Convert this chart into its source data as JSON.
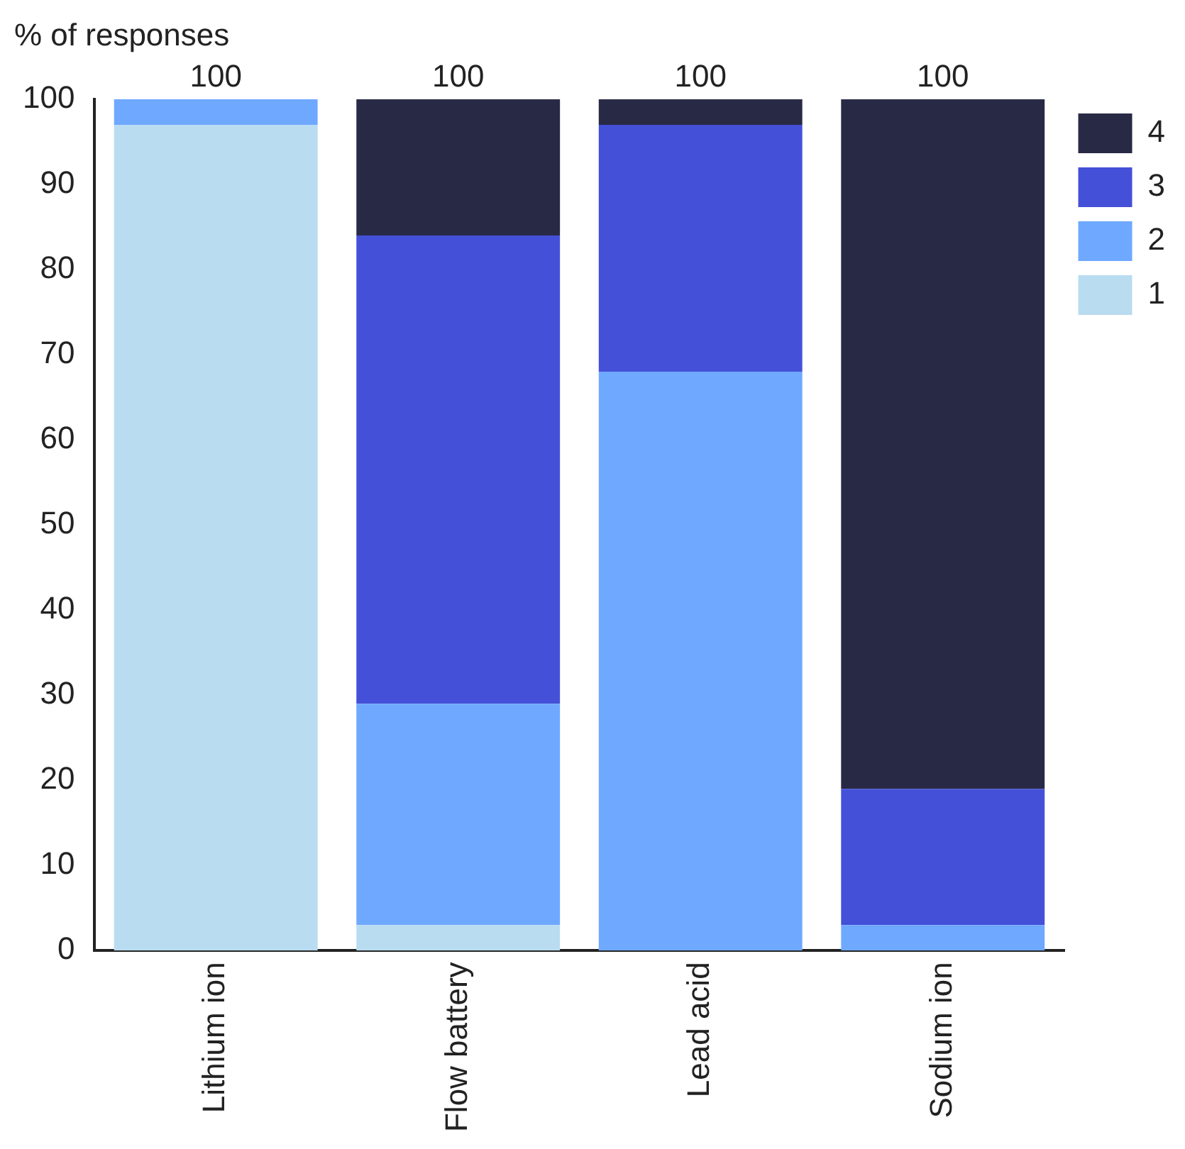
{
  "chart_data": {
    "type": "bar",
    "stacked": true,
    "ylabel": "% of responses",
    "categories": [
      "Lithium ion",
      "Flow battery",
      "Lead acid",
      "Sodium ion"
    ],
    "series": [
      {
        "name": "1",
        "color": "#b9dcf0",
        "values": [
          97,
          3,
          0,
          0
        ]
      },
      {
        "name": "2",
        "color": "#6fa8ff",
        "values": [
          3,
          26,
          68,
          3
        ]
      },
      {
        "name": "3",
        "color": "#4450d8",
        "values": [
          0,
          55,
          29,
          16
        ]
      },
      {
        "name": "4",
        "color": "#282a45",
        "values": [
          0,
          16,
          3,
          81
        ]
      }
    ],
    "totals": [
      "100",
      "100",
      "100",
      "100"
    ],
    "ylim": [
      0,
      100
    ],
    "yticks": [
      0,
      10,
      20,
      30,
      40,
      50,
      60,
      70,
      80,
      90,
      100
    ],
    "grid": false,
    "legend": "top right"
  }
}
